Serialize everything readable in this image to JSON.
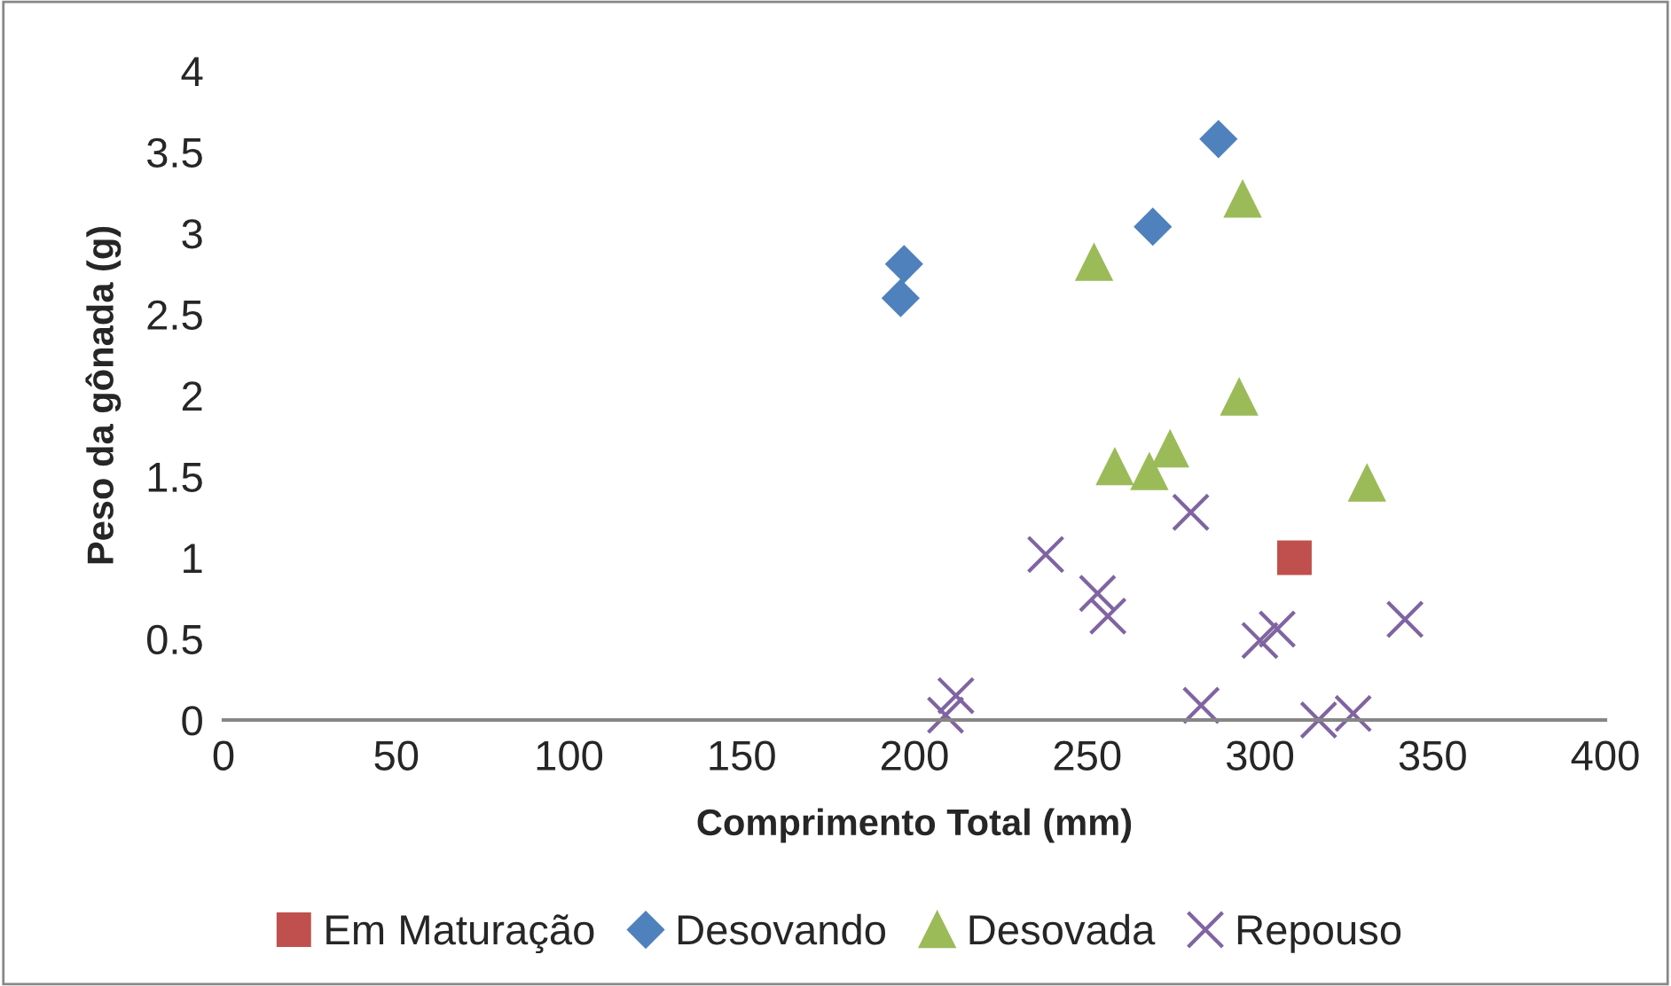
{
  "chart_data": {
    "type": "scatter",
    "xlabel": "Comprimento Total (mm)",
    "ylabel": "Peso da gônada (g)",
    "xlim": [
      0,
      400
    ],
    "xticks": [
      0,
      50,
      100,
      150,
      200,
      250,
      300,
      350,
      400
    ],
    "ylim": [
      0,
      4
    ],
    "yticks": [
      0,
      0.5,
      1,
      1.5,
      2,
      2.5,
      3,
      3.5,
      4
    ],
    "grid": false,
    "legend": "bottom",
    "series": [
      {
        "name": "Em Maturação",
        "color": "#c0504d",
        "marker": "square",
        "x": [
          310
        ],
        "values": [
          1.0
        ]
      },
      {
        "name": "Desovando",
        "color": "#4f81bd",
        "marker": "diamond",
        "x": [
          197,
          196,
          269,
          288
        ],
        "values": [
          2.81,
          2.6,
          3.04,
          3.58
        ]
      },
      {
        "name": "Desovada",
        "color": "#9bbb59",
        "marker": "triangle",
        "x": [
          252,
          295,
          294,
          258,
          268,
          274,
          331
        ],
        "values": [
          2.82,
          3.21,
          1.99,
          1.56,
          1.53,
          1.67,
          1.46
        ]
      },
      {
        "name": "Repouso",
        "color": "#8064a2",
        "marker": "cross",
        "x": [
          280,
          238,
          253,
          256,
          300,
          305,
          342,
          212,
          209,
          283,
          317,
          327
        ],
        "values": [
          1.28,
          1.02,
          0.78,
          0.64,
          0.49,
          0.56,
          0.62,
          0.15,
          0.03,
          0.09,
          0.0,
          0.04
        ]
      }
    ]
  }
}
